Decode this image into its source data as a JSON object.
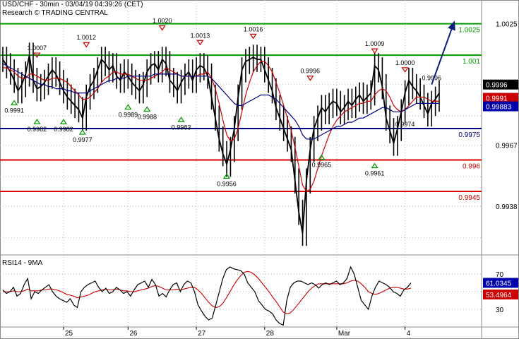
{
  "header": {
    "title": "USD/CHF - 30min - 03/04/19 04:39:26 (CET)",
    "source": "Research © TRADING CENTRAL"
  },
  "rsi_panel": {
    "label": "RSI14 - 9MA"
  },
  "colors": {
    "price": "#000000",
    "ma_fast": "#cc0000",
    "ma_slow": "#000080",
    "green_line": "#009900",
    "blue_line": "#000080",
    "red_line": "#dd0000",
    "arrow": "#0a1e7a",
    "grid": "#b8b8b8"
  },
  "chart_data": [
    {
      "type": "line",
      "title": "USD/CHF - 30min - 03/04/19 04:39:26 (CET)",
      "x_tick_labels": [
        "25",
        "26",
        "27",
        "28",
        "Mar",
        "4"
      ],
      "y_tick_labels": [
        "1.0025",
        "0.9996",
        "0.9967",
        "0.9938"
      ],
      "ylim": [
        0.9915,
        1.0035
      ],
      "grid": true,
      "series": [
        {
          "role": "close",
          "values": [
            1.0008,
            1.0005,
            1.0002,
            0.9998,
            0.9993,
            0.9996,
            1.0001,
            1.001,
            0.9998,
            0.9994,
            0.9995,
            0.9997,
            1.0,
            1.0003,
            1.0001,
            0.9997,
            0.9993,
            0.999,
            0.9988,
            0.9986,
            0.9984,
            0.998,
            0.999,
            0.9995,
            0.9998,
            1.0003,
            1.0008,
            1.0006,
            1.0003,
            1.0005,
            1.0,
            0.9998,
            1.0002,
            1.0,
            0.9997,
            0.9995,
            0.9993,
            0.9996,
            1.0002,
            1.0005,
            1.0006,
            1.0003,
            1.0008,
            1.0006,
            0.9998,
            0.9996,
            0.9993,
            0.9997,
            1.0,
            1.0002,
            0.9998,
            1.0003,
            1.0005,
            1.0004,
            1.0,
            0.999,
            0.998,
            0.997,
            0.9963,
            0.9958,
            0.9965,
            0.9975,
            0.999,
            1.0003,
            1.0007,
            1.0008,
            1.0009,
            1.0008,
            1.0008,
            1.0003,
            0.9998,
            0.9993,
            0.9985,
            0.998,
            0.9975,
            0.997,
            0.9965,
            0.995,
            0.9935,
            0.9925,
            0.995,
            0.9965,
            0.9975,
            0.998,
            0.9985,
            0.9983,
            0.9986,
            0.9988,
            0.9987,
            0.9983,
            0.9985,
            0.9988,
            0.9986,
            0.9989,
            0.9991,
            0.9988,
            0.999,
            0.9992,
            1.0005,
            1.0003,
            0.9995,
            0.998,
            0.9974,
            0.9968,
            0.9975,
            0.9983,
            0.9992,
            0.9998,
            0.9995,
            0.9993,
            0.999,
            0.9986,
            0.9982,
            0.9987,
            0.9989,
            0.9992
          ]
        },
        {
          "role": "moving average (red)",
          "values": [
            1.0004,
            1.0004,
            1.0003,
            1.0002,
            1.0,
            0.9999,
            0.9999,
            1.0001,
            1.0001,
            1.0,
            0.9999,
            0.9998,
            0.9998,
            0.9999,
            0.9999,
            0.9999,
            0.9998,
            0.9997,
            0.9995,
            0.9993,
            0.9991,
            0.9989,
            0.9989,
            0.999,
            0.9992,
            0.9994,
            0.9997,
            0.9999,
            1.0,
            1.0002,
            1.0002,
            1.0001,
            1.0001,
            1.0001,
            1.0,
            0.9999,
            0.9998,
            0.9998,
            0.9998,
            0.9999,
            1.0,
            1.0001,
            1.0002,
            1.0004,
            1.0003,
            1.0002,
            1.0001,
            1.0,
            1.0,
            1.0,
            1.0,
            1.0,
            1.0001,
            1.0001,
            1.0002,
            0.9999,
            0.9994,
            0.9987,
            0.9979,
            0.9972,
            0.9969,
            0.997,
            0.9975,
            0.9983,
            0.9991,
            0.9997,
            1.0002,
            1.0005,
            1.0007,
            1.0007,
            1.0005,
            1.0002,
            0.9997,
            0.9992,
            0.9986,
            0.998,
            0.9974,
            0.9966,
            0.9957,
            0.9948,
            0.9945,
            0.9946,
            0.995,
            0.9956,
            0.9962,
            0.9967,
            0.9972,
            0.9976,
            0.9979,
            0.9981,
            0.9983,
            0.9984,
            0.9985,
            0.9986,
            0.9987,
            0.9987,
            0.9988,
            0.9988,
            0.9991,
            0.9993,
            0.9994,
            0.9993,
            0.999,
            0.9986,
            0.9984,
            0.9983,
            0.9984,
            0.9986,
            0.9988,
            0.999,
            0.999,
            0.999,
            0.9989,
            0.9988,
            0.9988,
            0.9988
          ]
        },
        {
          "role": "moving average (blue)",
          "values": [
            1.0006,
            1.0005,
            1.0004,
            1.0003,
            1.0002,
            1.0001,
            1.0,
            0.9999,
            0.9998,
            0.9997,
            0.9996,
            0.9996,
            0.9995,
            0.9995,
            0.9994,
            0.9994,
            0.9994,
            0.9993,
            0.9993,
            0.9992,
            0.9992,
            0.9992,
            0.9992,
            0.9993,
            0.9994,
            0.9995,
            0.9996,
            0.9997,
            0.9998,
            0.9998,
            0.9999,
            0.9999,
            0.9999,
            1.0,
            1.0,
            1.0,
            1.0,
            1.0,
            1.0,
            1.0,
            1.0001,
            1.0001,
            1.0001,
            1.0001,
            1.0001,
            1.0001,
            1.0001,
            1.0,
            1.0,
            1.0,
            1.0,
            1.0,
            1.0,
            1.0,
            1.0,
            0.9999,
            0.9997,
            0.9995,
            0.9993,
            0.9991,
            0.9989,
            0.9987,
            0.9986,
            0.9986,
            0.9987,
            0.9988,
            0.9989,
            0.999,
            0.9991,
            0.9991,
            0.9991,
            0.999,
            0.9989,
            0.9987,
            0.9985,
            0.9983,
            0.9981,
            0.9979,
            0.9976,
            0.9972,
            0.997,
            0.997,
            0.997,
            0.9971,
            0.9972,
            0.9973,
            0.9974,
            0.9975,
            0.9976,
            0.9976,
            0.9977,
            0.9978,
            0.9978,
            0.9979,
            0.998,
            0.998,
            0.9981,
            0.9982,
            0.9983,
            0.9984,
            0.9985,
            0.9985,
            0.9984,
            0.9983,
            0.9983,
            0.9983,
            0.9984,
            0.9985,
            0.9986,
            0.9987,
            0.9987,
            0.9987,
            0.9987,
            0.9987,
            0.9987,
            0.9987
          ]
        }
      ],
      "horizontal_levels": [
        {
          "value": 1.0025,
          "label": "1.0025",
          "color": "#009900"
        },
        {
          "value": 1.001,
          "label": "1.001",
          "color": "#009900"
        },
        {
          "value": 0.9975,
          "label": "0.9975",
          "color": "#000080"
        },
        {
          "value": 0.996,
          "label": "0.996",
          "color": "#dd0000"
        },
        {
          "value": 0.9945,
          "label": "0.9945",
          "color": "#dd0000"
        }
      ],
      "price_tags": [
        {
          "value": 0.9996,
          "label": "0.9996",
          "bg": "#000000",
          "fg": "#ffffff"
        },
        {
          "value": 0.9991,
          "label": "0.9991",
          "bg": "#cc0000",
          "fg": "#ffffff"
        },
        {
          "value": 0.99883,
          "label": "0.99883",
          "bg": "#0000aa",
          "fg": "#ffffff"
        }
      ],
      "annotations": [
        {
          "label": "1.0007",
          "kind": "high",
          "i": 9,
          "value": 1.0007
        },
        {
          "label": "1.0012",
          "kind": "high",
          "i": 22,
          "value": 1.0012
        },
        {
          "label": "1.0020",
          "kind": "high",
          "i": 42,
          "value": 1.002
        },
        {
          "label": "1.0013",
          "kind": "high",
          "i": 52,
          "value": 1.0013
        },
        {
          "label": "1.0016",
          "kind": "high",
          "i": 66,
          "value": 1.0016
        },
        {
          "label": "0.9996",
          "kind": "high",
          "i": 81,
          "value": 0.9996
        },
        {
          "label": "1.0009",
          "kind": "high",
          "i": 98,
          "value": 1.0009
        },
        {
          "label": "1.0000",
          "kind": "high",
          "i": 106,
          "value": 1.0
        },
        {
          "label": "0.9996",
          "kind": "text",
          "i": 113,
          "value": 0.9996
        },
        {
          "label": "0.9991",
          "kind": "low",
          "i": 3,
          "value": 0.9991
        },
        {
          "label": "0.9982",
          "kind": "low",
          "i": 9,
          "value": 0.9982
        },
        {
          "label": "0.9982",
          "kind": "low",
          "i": 16,
          "value": 0.9982
        },
        {
          "label": "0.9977",
          "kind": "low",
          "i": 21,
          "value": 0.9977
        },
        {
          "label": "0.9989",
          "kind": "low",
          "i": 33,
          "value": 0.9989
        },
        {
          "label": "0.9988",
          "kind": "low",
          "i": 38,
          "value": 0.9988
        },
        {
          "label": "0.9983",
          "kind": "low",
          "i": 47,
          "value": 0.9983
        },
        {
          "label": "0.9956",
          "kind": "low",
          "i": 59,
          "value": 0.9956
        },
        {
          "label": "0.9965",
          "kind": "low",
          "i": 84,
          "value": 0.9965
        },
        {
          "label": "0.9961",
          "kind": "low",
          "i": 98,
          "value": 0.9961
        },
        {
          "label": "0.9974",
          "kind": "text",
          "i": 106,
          "value": 0.9974
        }
      ],
      "projection_arrow": {
        "from_i": 113,
        "from_value": 0.9996,
        "to_i": 120,
        "to_value": 1.0025
      }
    },
    {
      "type": "line",
      "title": "RSI14 - 9MA",
      "y_tick_labels": [
        "70",
        "30"
      ],
      "ylim": [
        10,
        90
      ],
      "series": [
        {
          "role": "RSI14",
          "values": [
            52,
            48,
            50,
            55,
            45,
            48,
            58,
            65,
            42,
            50,
            48,
            52,
            55,
            58,
            50,
            45,
            42,
            40,
            38,
            42,
            35,
            32,
            50,
            55,
            58,
            60,
            62,
            55,
            50,
            54,
            48,
            50,
            55,
            52,
            48,
            50,
            45,
            52,
            58,
            60,
            62,
            55,
            64,
            58,
            45,
            48,
            44,
            52,
            58,
            60,
            50,
            58,
            62,
            60,
            50,
            35,
            28,
            22,
            18,
            20,
            35,
            50,
            65,
            75,
            78,
            76,
            75,
            74,
            70,
            60,
            55,
            50,
            40,
            35,
            30,
            28,
            25,
            18,
            14,
            12,
            40,
            55,
            60,
            62,
            62,
            60,
            58,
            60,
            58,
            54,
            58,
            60,
            58,
            60,
            62,
            58,
            60,
            65,
            78,
            70,
            55,
            40,
            35,
            30,
            45,
            55,
            62,
            60,
            58,
            55,
            50,
            48,
            45,
            52,
            55,
            60
          ]
        },
        {
          "role": "9MA",
          "values": [
            50,
            50,
            50,
            51,
            50,
            50,
            51,
            53,
            51,
            51,
            51,
            52,
            52,
            53,
            53,
            52,
            51,
            49,
            47,
            46,
            45,
            43,
            44,
            45,
            46,
            48,
            50,
            51,
            52,
            53,
            52,
            52,
            53,
            52,
            51,
            51,
            50,
            50,
            51,
            52,
            53,
            54,
            56,
            57,
            56,
            54,
            52,
            52,
            52,
            53,
            52,
            53,
            54,
            55,
            55,
            52,
            48,
            43,
            38,
            34,
            32,
            33,
            37,
            43,
            50,
            57,
            63,
            68,
            72,
            73,
            72,
            69,
            65,
            60,
            55,
            50,
            44,
            39,
            33,
            27,
            25,
            26,
            30,
            35,
            40,
            45,
            50,
            54,
            57,
            59,
            59,
            59,
            59,
            59,
            59,
            59,
            59,
            60,
            62,
            63,
            62,
            59,
            55,
            50,
            48,
            47,
            48,
            50,
            52,
            54,
            55,
            55,
            54,
            53,
            53,
            54
          ]
        }
      ]
    }
  ]
}
